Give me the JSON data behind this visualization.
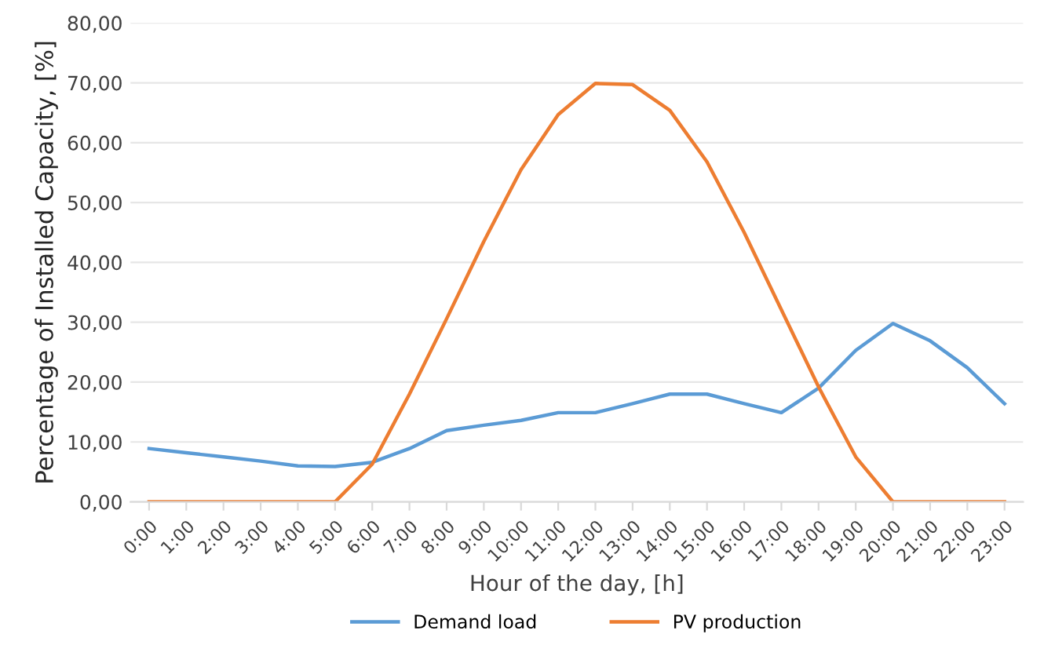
{
  "chart_data": {
    "type": "line",
    "xlabel": "Hour of the day, [h]",
    "ylabel": "Percentage of Installed Capacity, [%]",
    "categories": [
      "0:00",
      "1:00",
      "2:00",
      "3:00",
      "4:00",
      "5:00",
      "6:00",
      "7:00",
      "8:00",
      "9:00",
      "10:00",
      "11:00",
      "12:00",
      "13:00",
      "14:00",
      "15:00",
      "16:00",
      "17:00",
      "18:00",
      "19:00",
      "20:00",
      "21:00",
      "22:00",
      "23:00"
    ],
    "series": [
      {
        "name": "Demand load",
        "color": "#5b9bd5",
        "values": [
          8.9,
          8.2,
          7.5,
          6.8,
          6.0,
          5.9,
          6.6,
          8.9,
          11.9,
          12.8,
          13.6,
          14.9,
          14.9,
          16.4,
          18.0,
          18.0,
          16.4,
          14.9,
          19.0,
          25.3,
          29.8,
          26.9,
          22.4,
          16.4
        ]
      },
      {
        "name": "PV production",
        "color": "#ed7d31",
        "values": [
          0,
          0,
          0,
          0,
          0,
          0,
          6.3,
          18.0,
          30.6,
          43.5,
          55.5,
          64.7,
          69.9,
          69.7,
          65.4,
          56.8,
          45.0,
          32.1,
          19.2,
          7.5,
          0,
          0,
          0,
          0
        ]
      }
    ],
    "ylim": [
      0,
      80
    ],
    "yticks": [
      {
        "value": 0,
        "label": "0,00"
      },
      {
        "value": 10,
        "label": "10,00"
      },
      {
        "value": 20,
        "label": "20,00"
      },
      {
        "value": 30,
        "label": "30,00"
      },
      {
        "value": 40,
        "label": "40,00"
      },
      {
        "value": 50,
        "label": "50,00"
      },
      {
        "value": 60,
        "label": "60,00"
      },
      {
        "value": 70,
        "label": "70,00"
      },
      {
        "value": 80,
        "label": "80,00"
      }
    ],
    "grid": "y",
    "legend": "bottom",
    "marker": "none",
    "line_style": "solid"
  }
}
